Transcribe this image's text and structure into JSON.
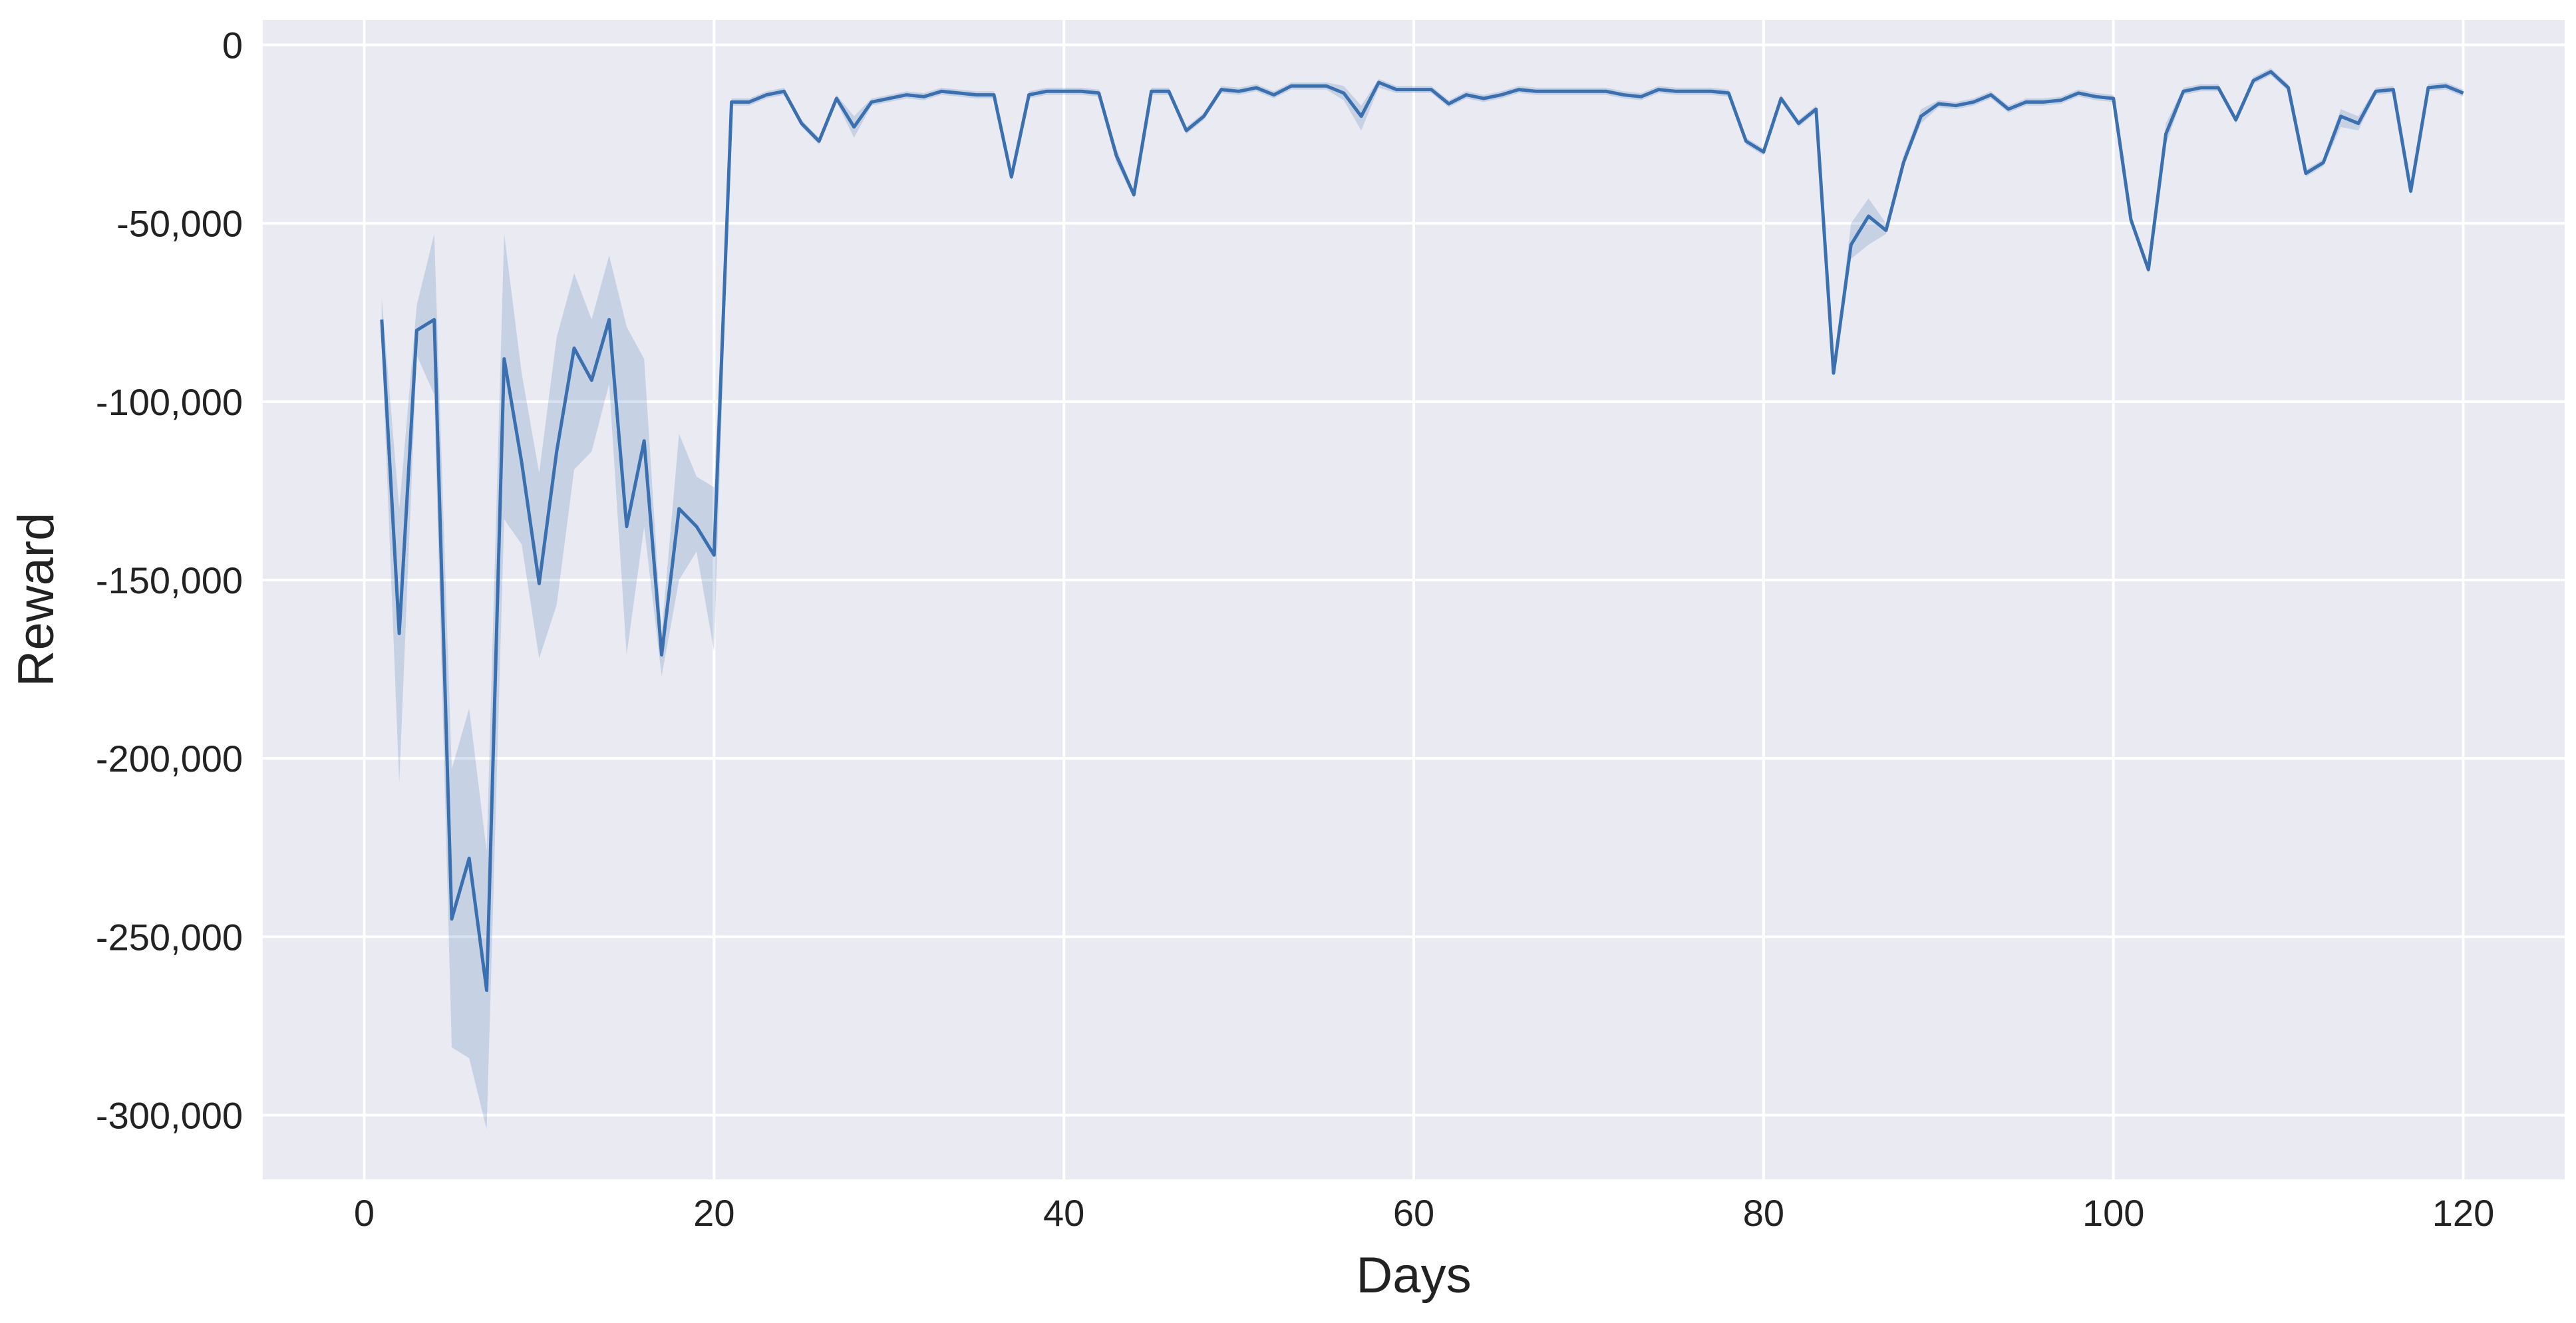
{
  "chart_data": {
    "type": "line",
    "title": "",
    "xlabel": "Days",
    "ylabel": "Reward",
    "xlim": [
      -5.8,
      125.8
    ],
    "ylim": [
      -318000,
      7000
    ],
    "xticks": [
      0,
      20,
      40,
      60,
      80,
      100,
      120
    ],
    "xtick_labels": [
      "0",
      "20",
      "40",
      "60",
      "80",
      "100",
      "120"
    ],
    "yticks": [
      0,
      -50000,
      -100000,
      -150000,
      -200000,
      -250000,
      -300000
    ],
    "ytick_labels": [
      "0",
      "-50,000",
      "-100,000",
      "-150,000",
      "-200,000",
      "-250,000",
      "-300,000"
    ],
    "grid": true,
    "background_color": "#eaeaf2",
    "grid_color": "#ffffff",
    "line_color": "#3a70b0",
    "band_color": "#3a70b0",
    "series": [
      {
        "x": [
          1,
          2,
          3,
          4,
          5,
          6,
          7,
          8,
          9,
          10,
          11,
          12,
          13,
          14,
          15,
          16,
          17,
          18,
          19,
          20,
          21,
          22,
          23,
          24,
          25,
          26,
          27,
          28,
          29,
          30,
          31,
          32,
          33,
          34,
          35,
          36,
          37,
          38,
          39,
          40,
          41,
          42,
          43,
          44,
          45,
          46,
          47,
          48,
          49,
          50,
          51,
          52,
          53,
          54,
          55,
          56,
          57,
          58,
          59,
          60,
          61,
          62,
          63,
          64,
          65,
          66,
          67,
          68,
          69,
          70,
          71,
          72,
          73,
          74,
          75,
          76,
          77,
          78,
          79,
          80,
          81,
          82,
          83,
          84,
          85,
          86,
          87,
          88,
          89,
          90,
          91,
          92,
          93,
          94,
          95,
          96,
          97,
          98,
          99,
          100,
          101,
          102,
          103,
          104,
          105,
          106,
          107,
          108,
          109,
          110,
          111,
          112,
          113,
          114,
          115,
          116,
          117,
          118,
          119,
          120
        ],
        "y": [
          -77000,
          -165000,
          -80000,
          -77000,
          -245000,
          -228000,
          -265000,
          -88000,
          -117000,
          -151000,
          -114000,
          -85000,
          -94000,
          -77000,
          -135000,
          -111000,
          -171000,
          -130000,
          -135000,
          -143000,
          -16000,
          -16000,
          -14000,
          -13000,
          -22000,
          -27000,
          -15000,
          -23000,
          -16000,
          -15000,
          -14000,
          -14500,
          -13000,
          -13500,
          -14000,
          -14000,
          -37000,
          -14000,
          -13000,
          -13000,
          -13000,
          -13500,
          -31000,
          -42000,
          -13000,
          -13000,
          -24000,
          -20000,
          -12500,
          -13000,
          -12000,
          -14000,
          -11500,
          -11500,
          -11500,
          -13500,
          -20000,
          -10500,
          -12500,
          -12500,
          -12500,
          -16500,
          -14000,
          -15000,
          -14000,
          -12500,
          -13000,
          -13000,
          -13000,
          -13000,
          -13000,
          -14000,
          -14500,
          -12500,
          -13000,
          -13000,
          -13000,
          -13500,
          -27000,
          -30000,
          -15000,
          -22000,
          -18000,
          -92000,
          -56000,
          -48000,
          -52000,
          -33000,
          -20000,
          -16500,
          -17000,
          -16000,
          -14000,
          -18000,
          -16000,
          -16000,
          -15500,
          -13500,
          -14500,
          -15000,
          -49000,
          -63000,
          -25000,
          -13000,
          -12000,
          -12000,
          -21000,
          -10000,
          -7500,
          -12000,
          -36000,
          -33000,
          -20000,
          -22000,
          -13000,
          -12500,
          -41000,
          -12000,
          -11500,
          -13500
        ],
        "y_lower": [
          -83000,
          -207000,
          -87000,
          -98000,
          -281000,
          -284000,
          -304000,
          -133000,
          -140000,
          -172000,
          -157000,
          -119000,
          -114000,
          -95000,
          -171000,
          -135000,
          -177000,
          -150000,
          -142000,
          -170000,
          -17000,
          -17000,
          -15000,
          -14000,
          -23000,
          -28000,
          -16000,
          -26000,
          -17000,
          -16000,
          -15000,
          -15500,
          -14000,
          -14500,
          -15000,
          -15000,
          -38000,
          -15000,
          -14000,
          -14000,
          -14000,
          -14500,
          -33000,
          -43000,
          -14000,
          -14000,
          -25000,
          -21000,
          -13500,
          -14000,
          -13000,
          -15000,
          -12500,
          -12500,
          -12500,
          -15500,
          -24000,
          -12000,
          -13500,
          -13500,
          -13500,
          -17500,
          -15000,
          -16000,
          -15000,
          -13500,
          -14000,
          -14000,
          -14000,
          -14000,
          -14000,
          -15000,
          -15500,
          -13500,
          -14000,
          -14000,
          -14000,
          -14500,
          -28000,
          -31000,
          -16000,
          -23000,
          -19000,
          -93000,
          -60000,
          -56000,
          -53000,
          -34000,
          -22000,
          -17500,
          -18000,
          -17000,
          -15000,
          -19000,
          -17000,
          -17000,
          -16500,
          -14500,
          -15500,
          -16000,
          -50000,
          -64000,
          -28000,
          -14000,
          -13000,
          -13000,
          -22000,
          -11000,
          -8500,
          -13000,
          -37000,
          -34000,
          -23000,
          -24000,
          -14000,
          -13500,
          -42000,
          -13000,
          -12500,
          -14500
        ],
        "y_upper": [
          -71000,
          -130000,
          -73000,
          -53000,
          -203000,
          -186000,
          -226000,
          -53000,
          -92000,
          -120000,
          -82000,
          -64000,
          -77000,
          -59000,
          -79000,
          -88000,
          -165000,
          -109000,
          -121000,
          -124000,
          -15000,
          -15000,
          -13000,
          -12000,
          -21000,
          -26000,
          -14000,
          -20000,
          -15000,
          -14000,
          -13000,
          -13500,
          -12000,
          -12500,
          -13000,
          -13000,
          -36000,
          -13000,
          -12000,
          -12000,
          -12000,
          -12500,
          -29000,
          -41000,
          -12000,
          -12000,
          -23000,
          -19000,
          -11500,
          -12000,
          -11000,
          -13000,
          -10500,
          -10500,
          -10500,
          -11500,
          -17000,
          -9500,
          -11500,
          -11500,
          -11500,
          -15500,
          -13000,
          -14000,
          -13000,
          -11500,
          -12000,
          -12000,
          -12000,
          -12000,
          -12000,
          -13000,
          -13500,
          -11500,
          -12000,
          -12000,
          -12000,
          -12500,
          -26000,
          -29000,
          -14000,
          -21000,
          -17000,
          -91000,
          -50000,
          -43000,
          -50000,
          -31000,
          -18000,
          -15500,
          -16000,
          -15000,
          -13000,
          -17000,
          -15000,
          -15000,
          -14500,
          -12500,
          -13500,
          -14000,
          -48000,
          -62000,
          -22000,
          -12000,
          -11000,
          -11000,
          -20000,
          -9000,
          -6500,
          -11000,
          -35000,
          -32000,
          -18000,
          -20000,
          -12000,
          -11500,
          -40000,
          -11000,
          -10500,
          -12500
        ]
      }
    ]
  }
}
